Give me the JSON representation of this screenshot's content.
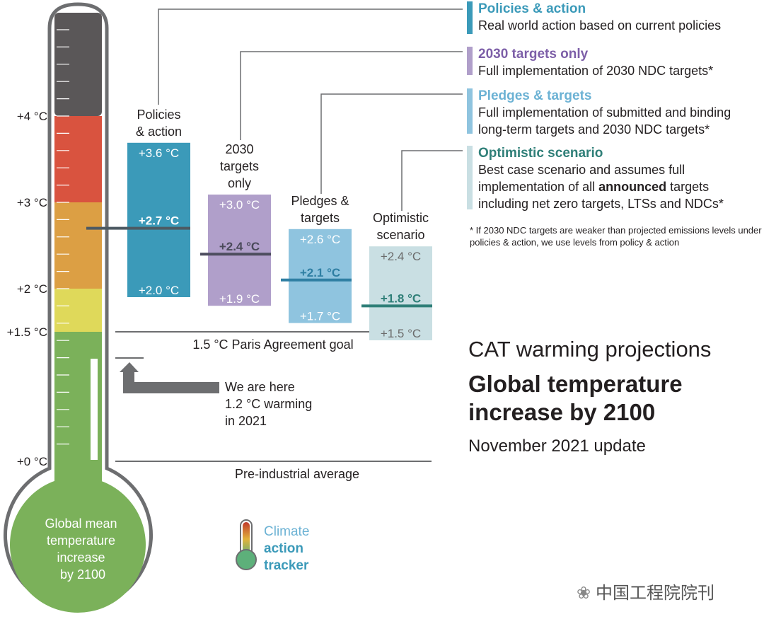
{
  "chart_data": {
    "type": "range-bar",
    "title": "CAT warming projections",
    "subtitle_bold": "Global temperature increase by 2100",
    "update": "November 2021 update",
    "axis_ticks": [
      {
        "value": 4,
        "label": "+4 °C"
      },
      {
        "value": 3,
        "label": "+3 °C"
      },
      {
        "value": 2,
        "label": "+2 °C"
      },
      {
        "value": 1.5,
        "label": "+1.5 °C"
      },
      {
        "value": 0,
        "label": "+0 °C"
      }
    ],
    "thermometer_bands": [
      {
        "from": 4,
        "to": 5.2,
        "color": "#5a5758"
      },
      {
        "from": 3,
        "to": 4,
        "color": "#d9533f"
      },
      {
        "from": 2,
        "to": 3,
        "color": "#dc9f44"
      },
      {
        "from": 1.5,
        "to": 2,
        "color": "#dfd95a"
      },
      {
        "from": 0,
        "to": 1.5,
        "color": "#7bb15a"
      }
    ],
    "bulb_label": [
      "Global mean",
      "temperature",
      "increase",
      "by 2100"
    ],
    "current_warming": {
      "value": 1.2,
      "label": [
        "We are here",
        "1.2 °C warming",
        "in 2021"
      ]
    },
    "reference_lines": [
      {
        "value": 1.5,
        "label": "1.5 °C Paris Agreement goal"
      },
      {
        "value": 0,
        "label": "Pre-industrial average"
      }
    ],
    "scenarios": [
      {
        "name": [
          "Policies",
          "& action"
        ],
        "high": 3.6,
        "median": 2.7,
        "low": 2.0,
        "high_label": "+3.6 °C",
        "median_label": "+2.7 °C",
        "low_label": "+2.0 °C",
        "color": "#3b9ab9",
        "text_color": "#ffffff",
        "median_color": "#ffffff",
        "line_color": "#4d5a63"
      },
      {
        "name": [
          "2030",
          "targets",
          "only"
        ],
        "high": 3.0,
        "median": 2.4,
        "low": 1.9,
        "high_label": "+3.0 °C",
        "median_label": "+2.4 °C",
        "low_label": "+1.9 °C",
        "color": "#b09fca",
        "text_color": "#ffffff",
        "median_color": "#4a4a5a",
        "line_color": "#4d4d5e"
      },
      {
        "name": [
          "Pledges &",
          "targets"
        ],
        "high": 2.6,
        "median": 2.1,
        "low": 1.7,
        "high_label": "+2.6 °C",
        "median_label": "+2.1 °C",
        "low_label": "+1.7 °C",
        "color": "#8fc4df",
        "text_color": "#ffffff",
        "median_color": "#2f7fa3",
        "line_color": "#2f7fa3"
      },
      {
        "name": [
          "Optimistic",
          "scenario"
        ],
        "high": 2.4,
        "median": 1.8,
        "low": 1.5,
        "high_label": "+2.4 °C",
        "median_label": "+1.8 °C",
        "low_label": "+1.5 °C",
        "color": "#c9dfe3",
        "text_color": "#6b6b6b",
        "median_color": "#2f7f78",
        "line_color": "#2f7f78"
      }
    ],
    "legend": [
      {
        "title": "Policies & action",
        "desc": "Real world action based on current policies",
        "color": "#3b9ab9"
      },
      {
        "title": "2030 targets only",
        "desc": "Full implementation of 2030 NDC targets*",
        "color": "#7d5fa8",
        "bar_color": "#b09fca"
      },
      {
        "title": "Pledges & targets",
        "desc": "Full implementation of submitted and binding long-term targets and 2030 NDC targets*",
        "color": "#6cb2d4",
        "bar_color": "#8fc4df"
      },
      {
        "title": "Optimistic scenario",
        "desc_parts": [
          "Best case scenario and assumes full implementation of all ",
          "announced",
          " targets including net zero targets, LTSs and NDCs*"
        ],
        "color": "#2f7f78",
        "bar_color": "#c9dfe3"
      }
    ],
    "footnote": "* If 2030 NDC targets are weaker than projected emissions levels under policies & action, we use levels from policy & action",
    "logo": {
      "line1": "Climate",
      "line2": "action",
      "line3": "tracker"
    }
  },
  "watermark": "中国工程院院刊",
  "colors": {
    "thermo_outline": "#6d6e70",
    "axis_text": "#231f20",
    "arrow": "#6d6e70"
  }
}
